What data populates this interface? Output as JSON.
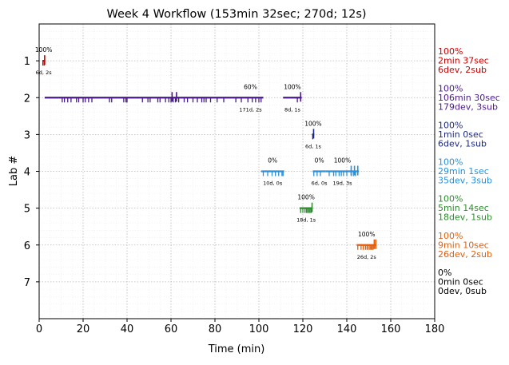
{
  "chart_data": {
    "type": "timeline",
    "title": "Week 4 Workflow (153min 32sec; 270d; 12s)",
    "xlabel": "Time (min)",
    "ylabel": "Lab #",
    "xlim": [
      0,
      180
    ],
    "ylim": [
      8,
      0
    ],
    "x_ticks": [
      0,
      20,
      40,
      60,
      80,
      100,
      120,
      140,
      160,
      180
    ],
    "y_ticks": [
      1,
      2,
      3,
      4,
      5,
      6,
      7
    ],
    "grid": true,
    "labs": [
      {
        "lab": 1,
        "color": "#cc0000",
        "summary": [
          "100%",
          "2min 37sec",
          "6dev, 2sub"
        ],
        "segments": [
          {
            "start": 1.5,
            "end": 2.6,
            "pct": "100%",
            "info": "6d, 2s"
          }
        ],
        "ticks_down": [
          1.7,
          2.3
        ],
        "ticks_up": [
          2.5
        ]
      },
      {
        "lab": 2,
        "color": "#4a1a8c",
        "summary": [
          "100%",
          "106min 30sec",
          "179dev, 3sub"
        ],
        "segments": [
          {
            "start": 2.5,
            "end": 102,
            "pct": "60%",
            "info": "171d, 2s"
          },
          {
            "start": 111,
            "end": 119.5,
            "pct": "100%",
            "info": "8d, 1s"
          }
        ],
        "ticks_down": [
          10.5,
          11.5,
          13,
          14.5,
          17,
          18,
          20,
          21,
          22.5,
          24,
          32,
          33,
          38.5,
          39.5,
          40,
          47,
          49.5,
          50.5,
          54,
          55,
          57.5,
          59,
          60,
          61,
          62,
          63.5,
          66,
          67.5,
          70,
          72,
          74,
          75,
          76,
          78,
          81,
          84,
          89.5,
          92,
          95,
          97,
          98.5,
          100,
          101,
          117.5
        ],
        "ticks_up": [
          60.5,
          62.5,
          119
        ]
      },
      {
        "lab": 3,
        "color": "#1c2a80",
        "summary": [
          "100%",
          "1min 0sec",
          "6dev, 1sub"
        ],
        "segments": [
          {
            "start": 124.2,
            "end": 125.2,
            "pct": "100%",
            "info": "6d, 1s"
          }
        ],
        "ticks_down": [
          124.5
        ],
        "ticks_up": [
          124.9
        ]
      },
      {
        "lab": 4,
        "color": "#2b90d9",
        "summary": [
          "100%",
          "29min 1sec",
          "35dev, 3sub"
        ],
        "segments": [
          {
            "start": 101,
            "end": 111.5,
            "pct": "0%",
            "info": "10d, 0s"
          },
          {
            "start": 124.5,
            "end": 130.5,
            "pct": "0%",
            "info": "6d, 0s"
          },
          {
            "start": 130.5,
            "end": 145.5,
            "pct": "100%",
            "info": "19d, 3s"
          }
        ],
        "ticks_down": [
          102,
          104,
          106,
          107.5,
          109,
          110.5,
          111,
          125,
          126.5,
          128,
          132,
          134,
          135,
          136.5,
          137.5,
          138.5,
          140,
          142,
          143,
          144
        ],
        "ticks_up": [
          142,
          143.5,
          145
        ]
      },
      {
        "lab": 5,
        "color": "#2e8b2e",
        "summary": [
          "100%",
          "5min 14sec",
          "18dev, 1sub"
        ],
        "segments": [
          {
            "start": 118.5,
            "end": 124.5,
            "pct": "100%",
            "info": "18d, 1s"
          }
        ],
        "ticks_down": [
          119,
          120,
          121,
          121.7,
          122.2,
          122.8,
          123.3,
          123.8
        ],
        "ticks_up": [
          124.2
        ]
      },
      {
        "lab": 6,
        "color": "#e06010",
        "summary": [
          "100%",
          "9min 10sec",
          "26dev, 2sub"
        ],
        "segments": [
          {
            "start": 144.5,
            "end": 153.5,
            "pct": "100%",
            "info": "26d, 2s"
          }
        ],
        "ticks_down": [
          145,
          146.5,
          147.5,
          148.5,
          149.2,
          149.8,
          150.5,
          151,
          151.5,
          152
        ],
        "ticks_up": [
          152.5,
          153.2
        ]
      },
      {
        "lab": 7,
        "color": "#000000",
        "summary": [
          "0%",
          "0min 0sec",
          "0dev, 0sub"
        ],
        "segments": [],
        "ticks_down": [],
        "ticks_up": []
      }
    ]
  }
}
